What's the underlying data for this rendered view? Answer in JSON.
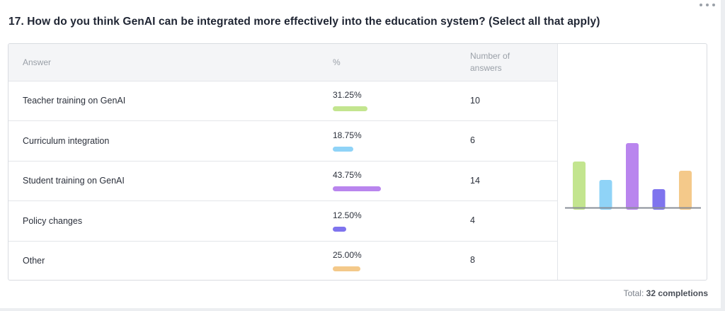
{
  "question": "17. How do you think GenAI can be integrated more effectively into the education system? (Select all that apply)",
  "table": {
    "headers": {
      "answer": "Answer",
      "percent": "%",
      "count_line1": "Number of",
      "count_line2": "answers"
    },
    "rows": [
      {
        "answer": "Teacher training on GenAI",
        "percent": "31.25%",
        "value": 31.25,
        "count": "10",
        "color": "#c3e58f"
      },
      {
        "answer": "Curriculum integration",
        "percent": "18.75%",
        "value": 18.75,
        "count": "6",
        "color": "#8fd3f7"
      },
      {
        "answer": "Student training on GenAI",
        "percent": "43.75%",
        "value": 43.75,
        "count": "14",
        "color": "#b985ee"
      },
      {
        "answer": "Policy changes",
        "percent": "12.50%",
        "value": 12.5,
        "count": "4",
        "color": "#7f74ee"
      },
      {
        "answer": "Other",
        "percent": "25.00%",
        "value": 25.0,
        "count": "8",
        "color": "#f4c98a"
      }
    ]
  },
  "chart_data": {
    "type": "bar",
    "categories": [
      "Teacher training on GenAI",
      "Curriculum integration",
      "Student training on GenAI",
      "Policy changes",
      "Other"
    ],
    "values": [
      31.25,
      18.75,
      43.75,
      12.5,
      25.0
    ],
    "colors": [
      "#c3e58f",
      "#8fd3f7",
      "#b985ee",
      "#7f74ee",
      "#f4c98a"
    ],
    "axis_color": "#8a8f98"
  },
  "footer": {
    "total_prefix": "Total:",
    "total_value": "32 completions"
  }
}
